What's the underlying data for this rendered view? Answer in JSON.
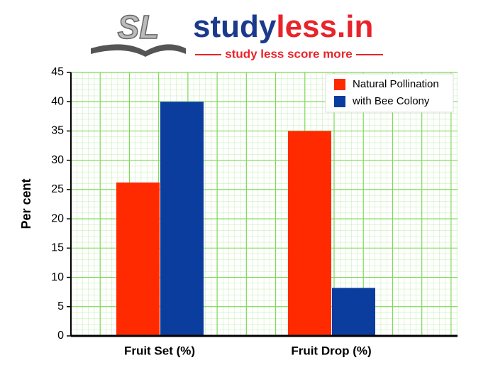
{
  "logo": {
    "mark": "SL",
    "name_first": "study",
    "name_second": "less.in",
    "tagline": "study less score more"
  },
  "chart_data": {
    "type": "bar",
    "y_label": "Per cent",
    "categories": [
      "Fruit Set (%)",
      "Fruit Drop (%)"
    ],
    "series": [
      {
        "name": "Natural Pollination",
        "color": "#ff2a00",
        "values": [
          26.2,
          35
        ]
      },
      {
        "name": "with Bee Colony",
        "color": "#0a3d9e",
        "values": [
          40,
          8.2
        ]
      }
    ],
    "ylim": [
      0,
      45
    ],
    "yticks": [
      0,
      5,
      10,
      15,
      20,
      25,
      30,
      35,
      40,
      45
    ],
    "grid": true,
    "grid_color": "#7ed957",
    "legend": "upper right"
  }
}
